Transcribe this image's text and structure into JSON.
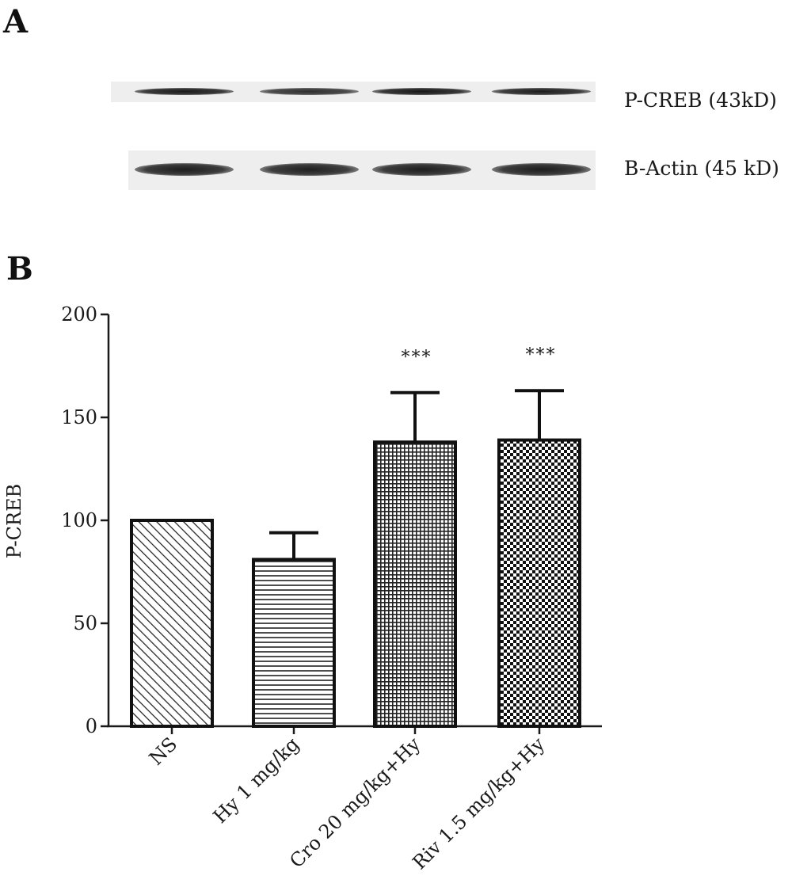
{
  "panel_a": {
    "letter": "A",
    "blots": [
      {
        "label": "P-CREB (43kD)",
        "band_intensities": [
          0.9,
          0.55,
          0.95,
          0.85
        ]
      },
      {
        "label": "B-Actin (45 kD)",
        "band_intensities": [
          0.85,
          0.8,
          0.85,
          0.85
        ]
      }
    ]
  },
  "panel_b": {
    "letter": "B"
  },
  "chart_data": {
    "type": "bar",
    "ylabel": "P-CREB",
    "xlabel": "",
    "ylim": [
      0,
      200
    ],
    "yticks": [
      "0",
      "50",
      "100",
      "150",
      "200"
    ],
    "categories": [
      "NS",
      "Hy 1 mg/kg",
      "Cro 20 mg/kg+Hy",
      "Riv 1.5 mg/kg+Hy"
    ],
    "values": [
      100,
      81,
      138,
      139
    ],
    "error_upper": [
      0,
      13,
      24,
      24
    ],
    "significance": [
      "",
      "",
      "***",
      "***"
    ],
    "patterns": [
      "diagonal-hatch",
      "horizontal-lines",
      "fine-grid",
      "checkerboard"
    ]
  }
}
